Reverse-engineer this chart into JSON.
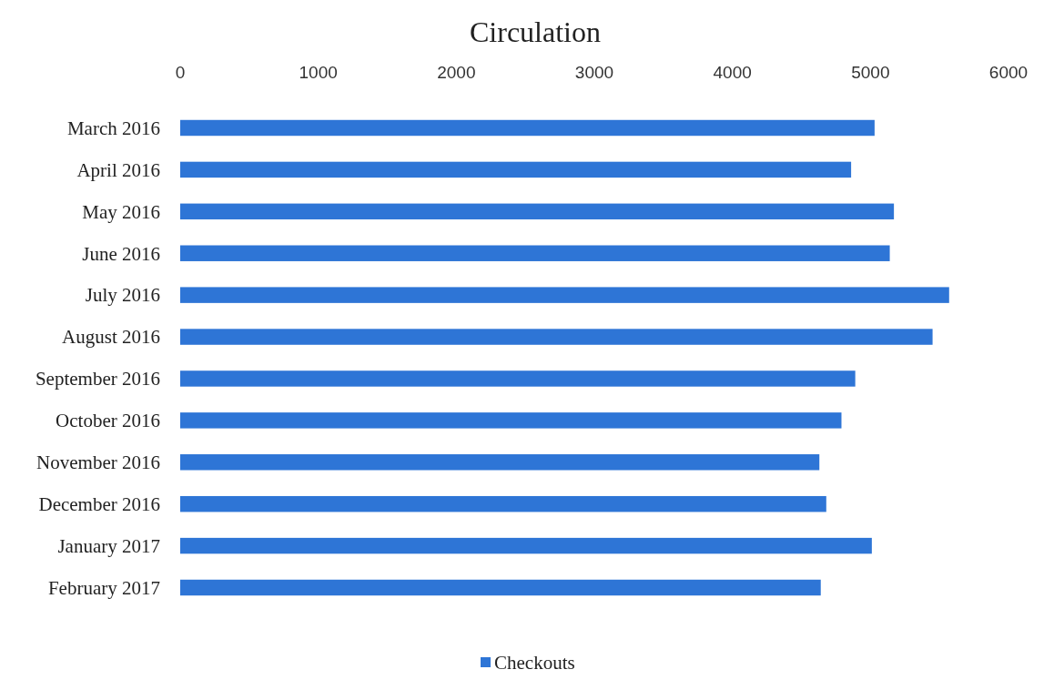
{
  "chart_data": {
    "type": "bar",
    "orientation": "horizontal",
    "title": "Circulation",
    "categories": [
      "March 2016",
      "April 2016",
      "May 2016",
      "June 2016",
      "July 2016",
      "August 2016",
      "September 2016",
      "October 2016",
      "November 2016",
      "December 2016",
      "January 2017",
      "February 2017"
    ],
    "series": [
      {
        "name": "Checkouts",
        "color": "#2e75d6",
        "values": [
          5030,
          4860,
          5170,
          5140,
          5570,
          5450,
          4890,
          4790,
          4630,
          4680,
          5010,
          4640
        ]
      }
    ],
    "xlim": [
      0,
      6000
    ],
    "xticks": [
      0,
      1000,
      2000,
      3000,
      4000,
      5000,
      6000
    ],
    "grid": false,
    "legend": "bottom"
  }
}
